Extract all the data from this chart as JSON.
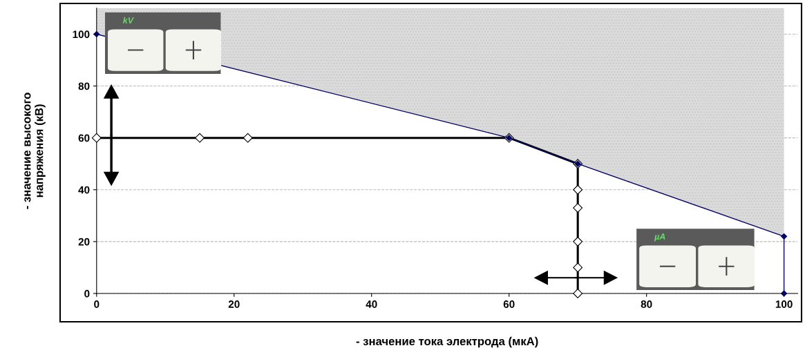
{
  "chart_data": {
    "type": "line",
    "xlabel": "- значение тока электрода (мкА)",
    "ylabel": "- значение высокого\nнапряжения (кВ)",
    "xlim": [
      0,
      102
    ],
    "ylim": [
      0,
      110
    ],
    "xticks": [
      0,
      20,
      40,
      60,
      80,
      100
    ],
    "yticks": [
      0,
      20,
      40,
      60,
      80,
      100
    ],
    "grid": "y",
    "annotations": [
      "kV",
      "µA"
    ],
    "series": [
      {
        "color": "#000066",
        "x": [
          0,
          60,
          70,
          100,
          100
        ],
        "values": [
          100,
          60,
          50,
          22,
          0
        ],
        "lower": [
          100,
          60,
          50,
          22,
          0
        ],
        "upper": [
          110,
          110,
          110,
          110,
          110
        ],
        "marker": "diamond"
      },
      {
        "color": "#000000",
        "x": [
          0,
          15,
          22,
          60,
          70,
          70,
          70,
          70,
          70,
          70
        ],
        "values": [
          60,
          60,
          60,
          60,
          50,
          40,
          33,
          20,
          10,
          0
        ],
        "marker": "diamond"
      }
    ]
  }
}
